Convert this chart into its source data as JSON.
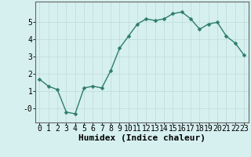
{
  "x": [
    0,
    1,
    2,
    3,
    4,
    5,
    6,
    7,
    8,
    9,
    10,
    11,
    12,
    13,
    14,
    15,
    16,
    17,
    18,
    19,
    20,
    21,
    22,
    23
  ],
  "y": [
    1.7,
    1.3,
    1.1,
    -0.2,
    -0.3,
    1.2,
    1.3,
    1.2,
    2.2,
    3.5,
    4.2,
    4.9,
    5.2,
    5.1,
    5.2,
    5.5,
    5.6,
    5.2,
    4.6,
    4.9,
    5.0,
    4.2,
    3.8,
    3.1
  ],
  "line_color": "#2e7d6e",
  "marker": "D",
  "markersize": 2.5,
  "linewidth": 1.0,
  "bg_color": "#d6f0ef",
  "grid_color": "#c0dedd",
  "xlabel": "Humidex (Indice chaleur)",
  "xlim": [
    -0.5,
    23.5
  ],
  "ylim": [
    -0.8,
    6.2
  ],
  "xticks": [
    0,
    1,
    2,
    3,
    4,
    5,
    6,
    7,
    8,
    9,
    10,
    11,
    12,
    13,
    14,
    15,
    16,
    17,
    18,
    19,
    20,
    21,
    22,
    23
  ],
  "yticks": [
    0,
    1,
    2,
    3,
    4,
    5
  ],
  "ytick_labels": [
    "-0",
    "1",
    "2",
    "3",
    "4",
    "5"
  ],
  "xlabel_fontsize": 8,
  "tick_fontsize": 7
}
